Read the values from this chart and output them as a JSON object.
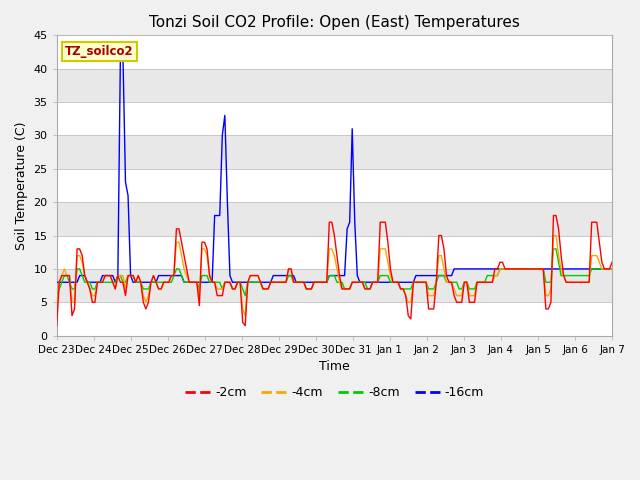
{
  "title": "Tonzi Soil CO2 Profile: Open (East) Temperatures",
  "ylabel": "Soil Temperature (C)",
  "xlabel": "Time",
  "annotation": "TZ_soilco2",
  "ylim": [
    0,
    45
  ],
  "x_labels": [
    "Dec 23",
    "Dec 24",
    "Dec 25",
    "Dec 26",
    "Dec 27",
    "Dec 28",
    "Dec 29",
    "Dec 30",
    "Dec 31",
    "Jan 1",
    "Jan 2",
    "Jan 3",
    "Jan 4",
    "Jan 5",
    "Jan 6",
    "Jan 7"
  ],
  "colors": {
    "-2cm": "#ff0000",
    "-4cm": "#ffa500",
    "-8cm": "#00cc00",
    "-16cm": "#0000ff"
  },
  "series_2cm": [
    1.5,
    8,
    9,
    9,
    9,
    9,
    3,
    4,
    13,
    13,
    12,
    9,
    8,
    7,
    5,
    5,
    8,
    8,
    8,
    9,
    9,
    9,
    8,
    7,
    9,
    8,
    8,
    6,
    9,
    9,
    9,
    8,
    9,
    8,
    5,
    4,
    5,
    8,
    9,
    8,
    7,
    7,
    8,
    8,
    8,
    9,
    9,
    16,
    16,
    14,
    12,
    10,
    8,
    8,
    8,
    8,
    4.5,
    14,
    14,
    13,
    9,
    8,
    8,
    6,
    6,
    6,
    8,
    8,
    8,
    7,
    7,
    8,
    8,
    2,
    1.5,
    8,
    9,
    9,
    9,
    9,
    8,
    7,
    7,
    7,
    8,
    8,
    8,
    8,
    8,
    8,
    8,
    10,
    10,
    8,
    8,
    8,
    8,
    8,
    7,
    7,
    7,
    8,
    8,
    8,
    8,
    8,
    8,
    17,
    17,
    15,
    12,
    9,
    7,
    7,
    7,
    7,
    8,
    8,
    8,
    8,
    8,
    7,
    7,
    7,
    8,
    8,
    8,
    17,
    17,
    17,
    14,
    10,
    8,
    8,
    8,
    7,
    7,
    6,
    3,
    2.5,
    8,
    8,
    8,
    8,
    8,
    8,
    4,
    4,
    4,
    8,
    15,
    15,
    13,
    9,
    8,
    8,
    6,
    5,
    5,
    5,
    8,
    8,
    5,
    5,
    5,
    8,
    8,
    8,
    8,
    8,
    8,
    8,
    10,
    10,
    11,
    11,
    10,
    10,
    10,
    10,
    10,
    10,
    10,
    10,
    10,
    10,
    10,
    10,
    10,
    10,
    10,
    10,
    4,
    4,
    5,
    18,
    18,
    16,
    12,
    9,
    8,
    8,
    8,
    8,
    8,
    8,
    8,
    8,
    8,
    8,
    17,
    17,
    17,
    14,
    11,
    10,
    10,
    10,
    11
  ],
  "series_4cm": [
    4,
    8,
    9,
    10,
    9,
    9,
    5,
    5,
    12,
    12,
    11,
    9,
    8,
    7,
    6,
    6,
    8,
    8,
    8,
    9,
    9,
    9,
    8,
    7,
    9,
    9,
    9,
    7,
    9,
    9,
    9,
    8,
    9,
    8,
    6,
    5,
    6,
    8,
    9,
    8,
    7,
    7,
    8,
    8,
    8,
    9,
    9,
    14,
    14,
    12,
    10,
    9,
    8,
    8,
    8,
    8,
    6,
    13,
    13,
    12,
    9,
    8,
    8,
    7,
    7,
    7,
    8,
    8,
    8,
    7,
    7,
    8,
    8,
    4,
    3,
    8,
    9,
    9,
    9,
    9,
    8,
    7,
    7,
    7,
    8,
    8,
    8,
    8,
    8,
    8,
    8,
    10,
    10,
    8,
    8,
    8,
    8,
    8,
    7,
    7,
    7,
    8,
    8,
    8,
    8,
    8,
    8,
    13,
    13,
    12,
    10,
    8,
    7,
    7,
    7,
    7,
    8,
    8,
    8,
    8,
    8,
    7,
    7,
    7,
    8,
    8,
    8,
    13,
    13,
    13,
    11,
    9,
    8,
    8,
    8,
    7,
    7,
    6,
    5,
    5,
    8,
    8,
    8,
    8,
    8,
    8,
    6,
    6,
    6,
    8,
    12,
    12,
    10,
    8,
    8,
    8,
    7,
    6,
    6,
    6,
    8,
    8,
    6,
    6,
    6,
    8,
    8,
    8,
    8,
    8,
    8,
    8,
    9,
    9,
    10,
    10,
    10,
    10,
    10,
    10,
    10,
    10,
    10,
    10,
    10,
    10,
    10,
    10,
    10,
    10,
    10,
    10,
    6,
    6,
    7,
    15,
    15,
    12,
    10,
    9,
    8,
    8,
    8,
    8,
    8,
    8,
    8,
    8,
    8,
    8,
    12,
    12,
    12,
    11,
    10,
    10,
    10,
    10,
    10
  ],
  "series_8cm": [
    6,
    7,
    8,
    9,
    9,
    8,
    7,
    7,
    10,
    10,
    9,
    8,
    8,
    8,
    7,
    7,
    8,
    8,
    8,
    8,
    8,
    8,
    8,
    8,
    9,
    9,
    8,
    8,
    9,
    9,
    9,
    8,
    8,
    8,
    7,
    7,
    7,
    8,
    8,
    8,
    8,
    8,
    8,
    8,
    8,
    8,
    9,
    10,
    10,
    9,
    8,
    8,
    8,
    8,
    8,
    8,
    7,
    9,
    9,
    9,
    8,
    8,
    8,
    8,
    8,
    7,
    8,
    8,
    8,
    7,
    7,
    8,
    8,
    7,
    6,
    8,
    8,
    8,
    8,
    8,
    8,
    7,
    7,
    7,
    8,
    8,
    8,
    8,
    8,
    8,
    8,
    9,
    9,
    8,
    8,
    8,
    8,
    8,
    7,
    7,
    7,
    8,
    8,
    8,
    8,
    8,
    8,
    9,
    9,
    9,
    8,
    8,
    8,
    7,
    7,
    7,
    8,
    8,
    8,
    8,
    8,
    8,
    7,
    7,
    8,
    8,
    8,
    9,
    9,
    9,
    9,
    8,
    8,
    8,
    8,
    7,
    7,
    7,
    7,
    7,
    8,
    8,
    8,
    8,
    8,
    8,
    7,
    7,
    7,
    8,
    9,
    9,
    9,
    8,
    8,
    8,
    8,
    8,
    7,
    7,
    8,
    8,
    7,
    7,
    7,
    8,
    8,
    8,
    8,
    9,
    9,
    9,
    9,
    9,
    10,
    10,
    10,
    10,
    10,
    10,
    10,
    10,
    10,
    10,
    10,
    10,
    10,
    10,
    10,
    10,
    10,
    10,
    8,
    8,
    8,
    13,
    13,
    11,
    9,
    9,
    9,
    9,
    9,
    9,
    9,
    9,
    9,
    9,
    9,
    9,
    10,
    10,
    10,
    10,
    10,
    10,
    10,
    10,
    10
  ],
  "series_16cm": [
    8,
    8,
    8,
    8,
    8,
    8,
    8,
    8,
    8,
    9,
    9,
    9,
    8,
    8,
    8,
    8,
    8,
    8,
    9,
    9,
    9,
    9,
    9,
    8,
    9,
    42,
    42,
    23,
    21,
    9,
    8,
    8,
    8,
    8,
    8,
    8,
    8,
    8,
    8,
    8,
    9,
    9,
    9,
    9,
    9,
    9,
    9,
    9,
    9,
    9,
    8,
    8,
    8,
    8,
    8,
    8,
    8,
    8,
    8,
    8,
    8,
    8,
    18,
    18,
    18,
    30,
    33,
    20,
    9,
    8,
    8,
    8,
    8,
    8,
    8,
    8,
    8,
    8,
    8,
    8,
    8,
    8,
    8,
    8,
    8,
    9,
    9,
    9,
    9,
    9,
    9,
    9,
    9,
    9,
    8,
    8,
    8,
    8,
    8,
    8,
    8,
    8,
    8,
    8,
    8,
    8,
    8,
    9,
    9,
    9,
    9,
    9,
    9,
    9,
    16,
    17,
    31,
    17,
    9,
    8,
    8,
    8,
    8,
    8,
    8,
    8,
    8,
    8,
    8,
    8,
    8,
    8,
    8,
    8,
    8,
    8,
    8,
    8,
    8,
    8,
    8,
    9,
    9,
    9,
    9,
    9,
    9,
    9,
    9,
    9,
    9,
    9,
    9,
    9,
    9,
    9,
    10,
    10,
    10,
    10,
    10,
    10,
    10,
    10,
    10,
    10,
    10,
    10,
    10,
    10,
    10,
    10,
    10,
    10,
    10,
    10,
    10,
    10,
    10,
    10,
    10,
    10,
    10,
    10,
    10,
    10,
    10,
    10,
    10,
    10,
    10,
    10,
    10,
    10,
    10,
    10,
    10,
    10,
    10,
    10,
    10,
    10,
    10,
    10,
    10,
    10,
    10,
    10,
    10,
    10,
    10,
    10,
    10,
    10,
    10,
    10,
    10,
    10,
    10
  ]
}
